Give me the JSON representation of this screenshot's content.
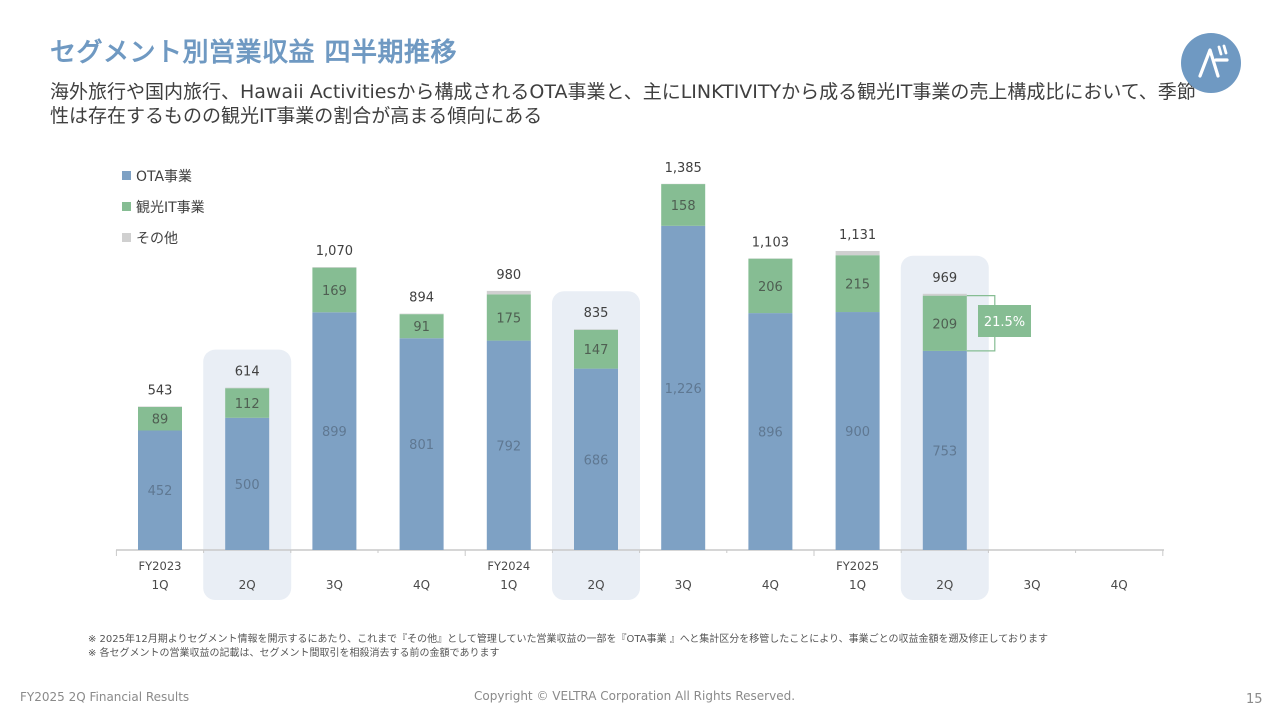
{
  "header": {
    "title": "セグメント別営業収益 四半期推移",
    "subtitle": "海外旅行や国内旅行、Hawaii Activitiesから構成されるOTA事業と、主にLINKTIVITYから成る観光IT事業の売上構成比において、季節性は存在するものの観光IT事業の割合が高まる傾向にある"
  },
  "colors": {
    "title": "#6f99c2",
    "ota": "#7ea1c4",
    "it": "#86bd93",
    "other": "#d0d0d0",
    "highlight": "#e9eef5",
    "callout": "#86bd93"
  },
  "chart_data": {
    "type": "bar",
    "stacked": true,
    "legend_position": "top-left",
    "grid": false,
    "categories": [
      "1Q",
      "2Q",
      "3Q",
      "4Q",
      "1Q",
      "2Q",
      "3Q",
      "4Q",
      "1Q",
      "2Q",
      "3Q",
      "4Q"
    ],
    "fiscal_years": [
      "FY2023",
      "",
      "",
      "",
      "FY2024",
      "",
      "",
      "",
      "FY2025",
      "",
      "",
      ""
    ],
    "highlighted_categories": [
      1,
      5,
      9
    ],
    "series": [
      {
        "name": "OTA事業",
        "values": [
          452,
          500,
          899,
          801,
          792,
          686,
          1226,
          896,
          900,
          753,
          null,
          null
        ]
      },
      {
        "name": "観光IT事業",
        "values": [
          89,
          112,
          169,
          91,
          175,
          147,
          158,
          206,
          215,
          209,
          null,
          null
        ]
      },
      {
        "name": "その他",
        "values": [
          2,
          2,
          2,
          2,
          13,
          2,
          1,
          1,
          16,
          7,
          null,
          null
        ]
      }
    ],
    "segment_labels": {
      "OTA事業": [
        "452",
        "500",
        "899",
        "801",
        "792",
        "686",
        "1,226",
        "896",
        "900",
        "753",
        "",
        ""
      ],
      "観光IT事業": [
        "89",
        "112",
        "169",
        "91",
        "175",
        "147",
        "158",
        "206",
        "215",
        "209",
        "",
        ""
      ]
    },
    "totals": [
      "543",
      "614",
      "1,070",
      "894",
      "980",
      "835",
      "1,385",
      "1,103",
      "1,131",
      "969",
      "",
      ""
    ],
    "callout": "21.5%",
    "ylim": [
      0,
      1400
    ]
  },
  "notes": [
    "※ 2025年12月期よりセグメント情報を開示するにあたり、これまで『その他』として管理していた営業収益の一部を『OTA事業 』へと集計区分を移管したことにより、事業ごとの収益金額を遡及修正しております",
    "※ 各セグメントの営業収益の記載は、セグメント間取引を相殺消去する前の金額であります"
  ],
  "footer": {
    "left": "FY2025 2Q Financial Results",
    "center": "Copyright © VELTRA Corporation All Rights Reserved.",
    "page": "15"
  }
}
